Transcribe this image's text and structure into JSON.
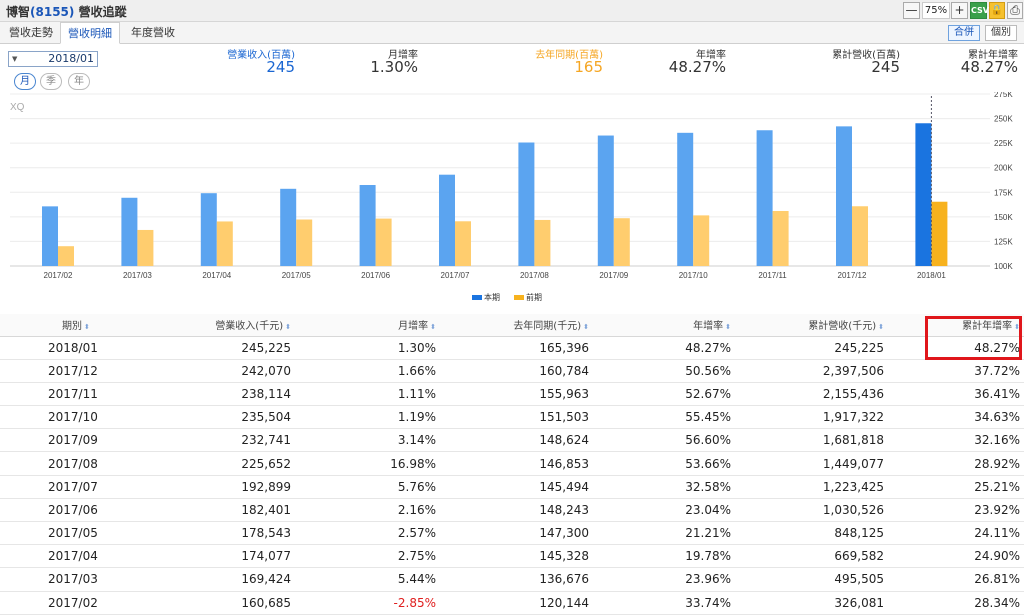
{
  "window": {
    "title_prefix": "博智",
    "code": "(8155)",
    "title_suffix": " 營收追蹤"
  },
  "toolbar": {
    "zoom_minus": "—",
    "zoom": "75%",
    "zoom_plus": "+",
    "csv": "CSV",
    "lock": "🔒",
    "print": "⎙"
  },
  "tabs": [
    {
      "label": "營收走勢"
    },
    {
      "label": "營收明細"
    },
    {
      "label": "年度營收"
    }
  ],
  "modes": {
    "merged": "合併",
    "individual": "個別"
  },
  "date": {
    "value": "2018/01",
    "arrow": "▼"
  },
  "periods": [
    "月",
    "季",
    "年"
  ],
  "summary": [
    {
      "label": "營業收入(百萬)",
      "value": "245"
    },
    {
      "label": "月增率",
      "value": "1.30%"
    },
    {
      "label": "去年同期(百萬)",
      "value": "165"
    },
    {
      "label": "年增率",
      "value": "48.27%"
    },
    {
      "label": "累計營收(百萬)",
      "value": "245"
    },
    {
      "label": "累計年增率",
      "value": "48.27%"
    }
  ],
  "colors": {
    "current": "#5ba4f0",
    "current_highlight": "#1a74e0",
    "previous": "#ffcd6e",
    "previous_highlight": "#f7b21e",
    "highlight_box": "#e0161b"
  },
  "chart_data": {
    "type": "bar",
    "watermark": "XQ",
    "categories": [
      "2017/02",
      "2017/03",
      "2017/04",
      "2017/05",
      "2017/06",
      "2017/07",
      "2017/08",
      "2017/09",
      "2017/10",
      "2017/11",
      "2017/12",
      "2018/01"
    ],
    "series": [
      {
        "name": "本期",
        "values": [
          160.685,
          169.424,
          174.077,
          178.543,
          182.401,
          192.899,
          225.652,
          232.741,
          235.504,
          238.114,
          242.07,
          245.225
        ]
      },
      {
        "name": "前期",
        "values": [
          120.144,
          136.676,
          145.328,
          147.3,
          148.243,
          145.494,
          146.853,
          148.624,
          151.503,
          155.963,
          160.784,
          165.396
        ]
      }
    ],
    "ylim": [
      100,
      275
    ],
    "yticks": [
      "100K",
      "125K",
      "150K",
      "175K",
      "200K",
      "225K",
      "250K",
      "275K"
    ],
    "legend_position": "bottom-center"
  },
  "table": {
    "headers": [
      "期別",
      "營業收入(千元)",
      "月增率",
      "去年同期(千元)",
      "年增率",
      "累計營收(千元)",
      "累計年增率"
    ],
    "sort_icon": "⬍",
    "rows": [
      [
        "2018/01",
        "245,225",
        "1.30%",
        "165,396",
        "48.27%",
        "245,225",
        "48.27%"
      ],
      [
        "2017/12",
        "242,070",
        "1.66%",
        "160,784",
        "50.56%",
        "2,397,506",
        "37.72%"
      ],
      [
        "2017/11",
        "238,114",
        "1.11%",
        "155,963",
        "52.67%",
        "2,155,436",
        "36.41%"
      ],
      [
        "2017/10",
        "235,504",
        "1.19%",
        "151,503",
        "55.45%",
        "1,917,322",
        "34.63%"
      ],
      [
        "2017/09",
        "232,741",
        "3.14%",
        "148,624",
        "56.60%",
        "1,681,818",
        "32.16%"
      ],
      [
        "2017/08",
        "225,652",
        "16.98%",
        "146,853",
        "53.66%",
        "1,449,077",
        "28.92%"
      ],
      [
        "2017/07",
        "192,899",
        "5.76%",
        "145,494",
        "32.58%",
        "1,223,425",
        "25.21%"
      ],
      [
        "2017/06",
        "182,401",
        "2.16%",
        "148,243",
        "23.04%",
        "1,030,526",
        "23.92%"
      ],
      [
        "2017/05",
        "178,543",
        "2.57%",
        "147,300",
        "21.21%",
        "848,125",
        "24.11%"
      ],
      [
        "2017/04",
        "174,077",
        "2.75%",
        "145,328",
        "19.78%",
        "669,582",
        "24.90%"
      ],
      [
        "2017/03",
        "169,424",
        "5.44%",
        "136,676",
        "23.96%",
        "495,505",
        "26.81%"
      ],
      [
        "2017/02",
        "160,685",
        "-2.85%",
        "120,144",
        "33.74%",
        "326,081",
        "28.34%"
      ]
    ]
  }
}
